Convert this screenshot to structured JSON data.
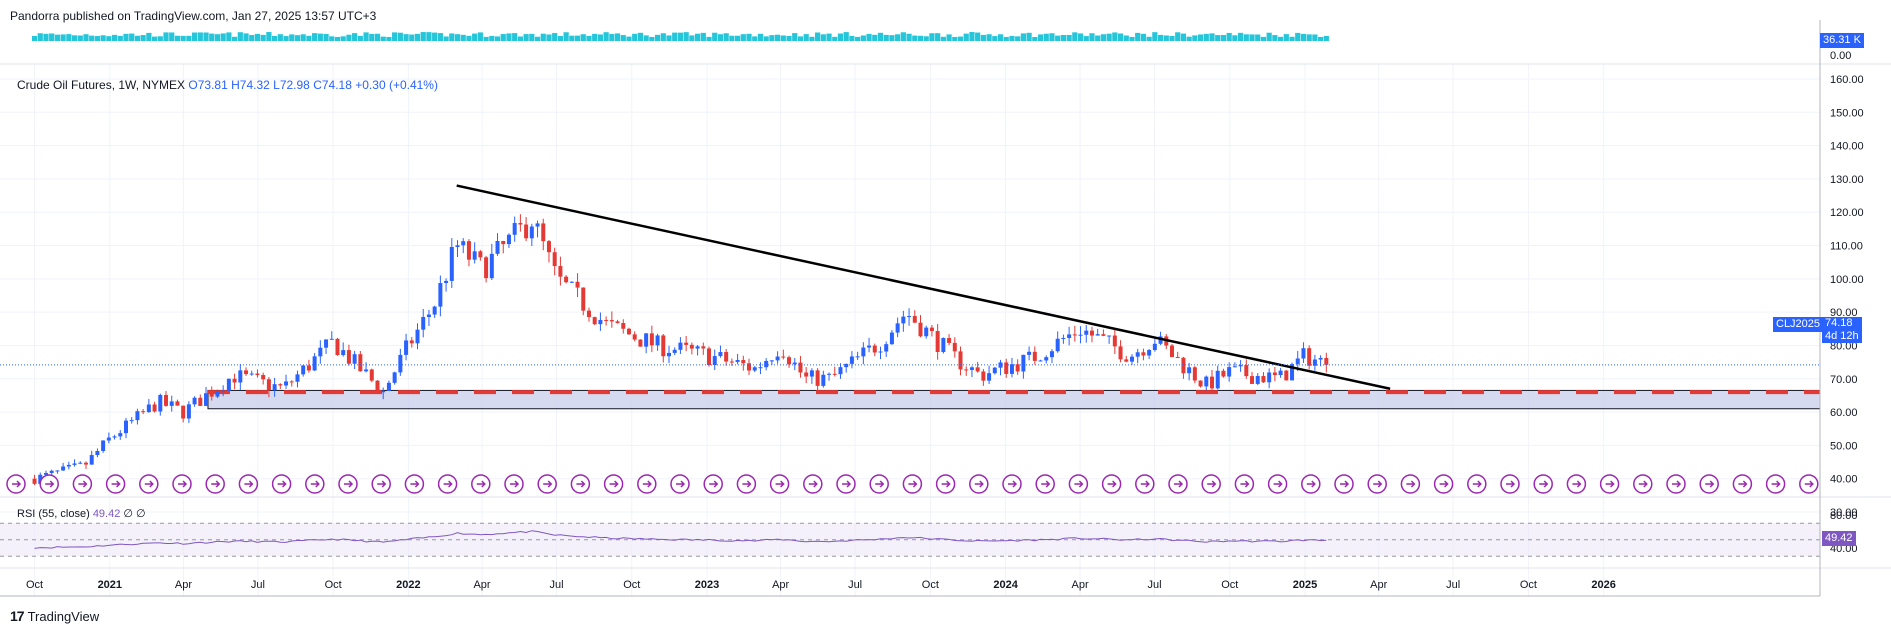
{
  "header": {
    "publisher_line": "Pandorra published on TradingView.com, Jan 27, 2025 13:57 UTC+3"
  },
  "legend": {
    "symbol": "Crude Oil Futures, 1W, NYMEX",
    "open": "O73.81",
    "high": "H74.32",
    "low": "L72.98",
    "close": "C74.18",
    "change": "+0.30 (+0.41%)"
  },
  "rsi_legend": {
    "label": "RSI (55, close)",
    "value": "49.42",
    "extra": "∅ ∅"
  },
  "brand": {
    "logo": "17",
    "name": "TradingView"
  },
  "price_tag": {
    "symbol": "CLJ2025",
    "price": "74.18",
    "countdown": "4d 12h"
  },
  "volume_tag": "36.31 K",
  "rsi_tag": "49.42",
  "colors": {
    "up": "#2962ff",
    "down": "#e53935",
    "volume": "#26c6da",
    "rsi": "#7e57c2",
    "zone": "#c5cae9",
    "support": "#e53935",
    "trend": "#000000"
  },
  "chart_data": [
    {
      "type": "candlestick",
      "title": "Crude Oil Futures, 1W, NYMEX",
      "ylim": [
        28,
        164
      ],
      "y_ticks": [
        "160.00",
        "150.00",
        "140.00",
        "130.00",
        "120.00",
        "110.00",
        "100.00",
        "90.00",
        "80.00",
        "70.00",
        "60.00",
        "50.00",
        "40.00",
        "30.00"
      ],
      "x_ticks": [
        "Oct",
        "2021",
        "Apr",
        "Jul",
        "Oct",
        "2022",
        "Apr",
        "Jul",
        "Oct",
        "2023",
        "Apr",
        "Jul",
        "Oct",
        "2024",
        "Apr",
        "Jul",
        "Oct",
        "2025",
        "Apr",
        "Jul",
        "Oct",
        "2026"
      ],
      "close_path": [
        [
          "2020-10-01",
          40
        ],
        [
          "2020-12-01",
          44
        ],
        [
          "2021-01-01",
          52
        ],
        [
          "2021-03-01",
          63
        ],
        [
          "2021-04-01",
          60
        ],
        [
          "2021-06-01",
          71
        ],
        [
          "2021-08-01",
          67
        ],
        [
          "2021-10-01",
          81
        ],
        [
          "2021-12-01",
          66
        ],
        [
          "2022-01-01",
          80
        ],
        [
          "2022-02-01",
          92
        ],
        [
          "2022-03-01",
          110
        ],
        [
          "2022-04-01",
          103
        ],
        [
          "2022-06-01",
          118
        ],
        [
          "2022-07-01",
          100
        ],
        [
          "2022-09-01",
          86
        ],
        [
          "2022-11-01",
          80
        ],
        [
          "2023-01-01",
          77
        ],
        [
          "2023-03-01",
          73
        ],
        [
          "2023-04-01",
          80
        ],
        [
          "2023-05-01",
          70
        ],
        [
          "2023-06-01",
          70
        ],
        [
          "2023-08-01",
          81
        ],
        [
          "2023-09-01",
          90
        ],
        [
          "2023-11-01",
          76
        ],
        [
          "2023-12-01",
          71
        ],
        [
          "2024-02-01",
          76
        ],
        [
          "2024-04-01",
          85
        ],
        [
          "2024-06-01",
          77
        ],
        [
          "2024-07-01",
          82
        ],
        [
          "2024-09-01",
          68
        ],
        [
          "2024-10-01",
          72
        ],
        [
          "2024-12-01",
          70
        ],
        [
          "2025-01-01",
          77
        ],
        [
          "2025-01-27",
          74.18
        ]
      ],
      "trendline": [
        [
          "2022-03-01",
          128
        ],
        [
          "2025-04-15",
          67
        ]
      ],
      "support_line": 66,
      "support_zone": [
        61,
        66.5
      ],
      "last_price": 74.18
    },
    {
      "type": "line",
      "title": "RSI (55, close)",
      "y_ticks": [
        "80.00",
        "40.00"
      ],
      "band": [
        30,
        70
      ],
      "mid": 50,
      "last_value": 49.42
    },
    {
      "type": "bar",
      "title": "Volume",
      "y_ticks": [
        "36.31 K",
        "0.00"
      ]
    }
  ]
}
